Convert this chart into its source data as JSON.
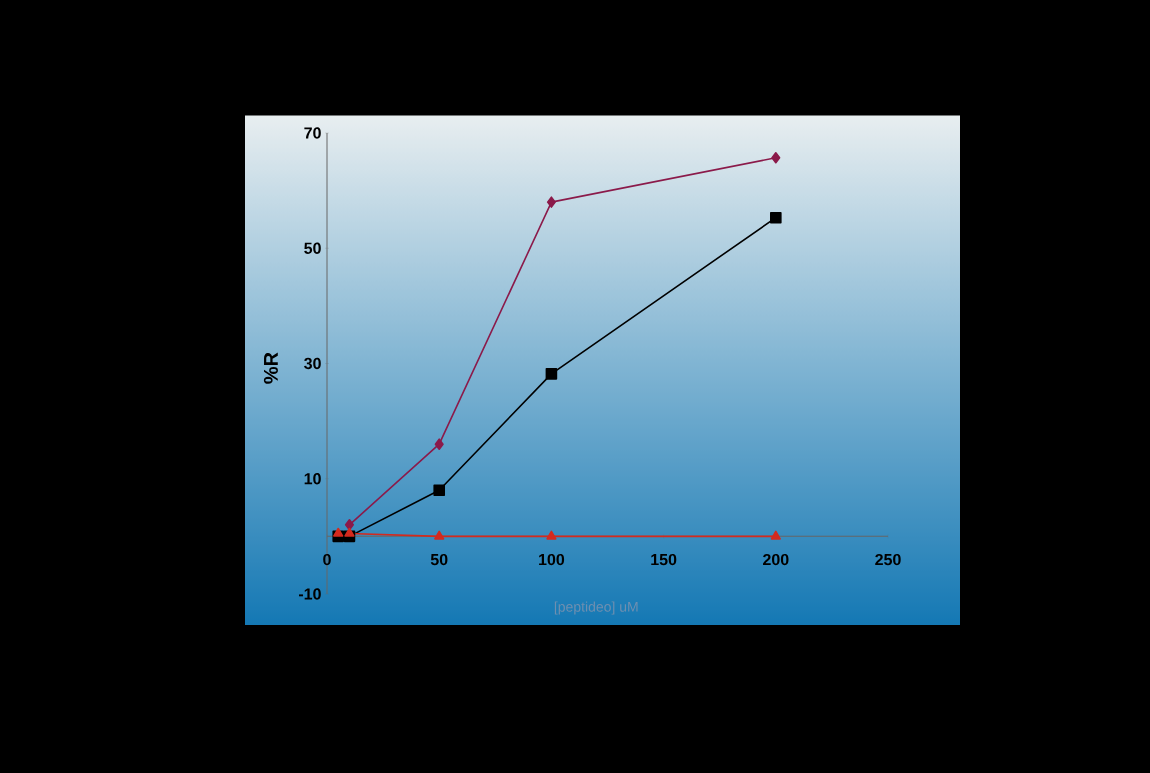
{
  "chart_data": {
    "type": "line",
    "xlabel": "[peptideo] uM",
    "ylabel": "%R",
    "xlim": [
      0,
      250
    ],
    "ylim": [
      -10,
      70
    ],
    "xticks": [
      0,
      50,
      100,
      150,
      200,
      250
    ],
    "yticks": [
      -10,
      10,
      30,
      50,
      70
    ],
    "line_style": "solid",
    "series": [
      {
        "color": "#8b1a4a",
        "marker": "diamond",
        "x": [
          10,
          50,
          100,
          200
        ],
        "values": [
          2,
          16,
          58,
          65.7
        ]
      },
      {
        "color": "#000000",
        "marker": "square",
        "x": [
          5,
          10,
          50,
          100,
          200
        ],
        "values": [
          0,
          0,
          8,
          28.2,
          55.3
        ]
      },
      {
        "color": "#d42a1e",
        "marker": "triangle",
        "x": [
          5,
          10,
          50,
          100,
          200
        ],
        "values": [
          0.5,
          0.5,
          0,
          0,
          0
        ]
      }
    ]
  }
}
